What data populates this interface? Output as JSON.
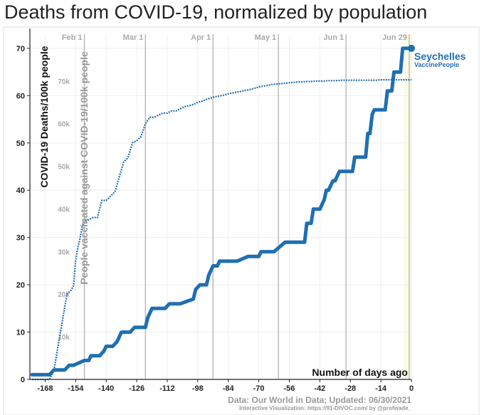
{
  "title": "Deaths from COVID-19, normalized by population",
  "chart_data": {
    "type": "line",
    "xlabel": "Number of days ago",
    "ylabel": "COVID-19 Deaths/100k people",
    "y2label": "People vaccinated against COVID-19/100k people",
    "xlim": [
      -175,
      0
    ],
    "ylim": [
      0,
      73
    ],
    "y2lim": [
      0,
      81000
    ],
    "x_ticks": [
      -168,
      -154,
      -140,
      -126,
      -112,
      -98,
      -84,
      -70,
      -56,
      -42,
      -28,
      -14,
      0
    ],
    "x_tick_labels": [
      "-168",
      "-154",
      "-140",
      "-126",
      "-112",
      "-98",
      "-84",
      "-70",
      "-56",
      "-42",
      "-28",
      "-14",
      "0"
    ],
    "y_ticks": [
      0,
      10,
      20,
      30,
      40,
      50,
      60,
      70
    ],
    "y_tick_labels": [
      "0",
      "10",
      "20",
      "30",
      "40",
      "50",
      "60",
      "70"
    ],
    "y2_ticks": [
      10000,
      20000,
      30000,
      40000,
      50000,
      60000,
      70000
    ],
    "y2_tick_labels": [
      "10k",
      "20k",
      "30k",
      "40k",
      "50k",
      "60k",
      "70k"
    ],
    "date_markers": [
      {
        "label": "Feb 1",
        "x": -150
      },
      {
        "label": "Mar 1",
        "x": -122
      },
      {
        "label": "Apr 1",
        "x": -91
      },
      {
        "label": "May 1",
        "x": -61
      },
      {
        "label": "Jun 1",
        "x": -30
      },
      {
        "label": "Jun 29",
        "x": -1
      }
    ],
    "grid": true,
    "series": [
      {
        "name": "Seychelles",
        "role": "deaths",
        "color": "#1f6fb2",
        "x": [
          -174,
          -166,
          -164,
          -159,
          -157,
          -155,
          -150,
          -148,
          -147,
          -145,
          -143,
          -141,
          -140,
          -138,
          -137,
          -135,
          -134,
          -133,
          -131,
          -130,
          -129,
          -127,
          -126,
          -125,
          -123,
          -122,
          -121,
          -120,
          -119,
          -113,
          -111,
          -110,
          -109,
          -108,
          -107,
          -106,
          -100,
          -99,
          -97,
          -96,
          -94,
          -93,
          -92,
          -91,
          -90,
          -89,
          -88,
          -87,
          -86,
          -85,
          -84,
          -83,
          -82,
          -81,
          -80,
          -75,
          -74,
          -70,
          -69,
          -64,
          -63,
          -58,
          -57,
          -56,
          -54,
          -52,
          -50,
          -49,
          -48,
          -46,
          -45,
          -44,
          -43,
          -42,
          -40,
          -39,
          -38,
          -37,
          -36,
          -35,
          -33,
          -32,
          -30,
          -29,
          -28,
          -27,
          -26,
          -25,
          -24,
          -23,
          -22,
          -21,
          -20,
          -19,
          -18,
          -17,
          -16,
          -15,
          -14,
          -13,
          -12,
          -11,
          -10,
          -9,
          -8,
          -7,
          -6,
          -5,
          -4,
          -3,
          -2,
          -1,
          0
        ],
        "y": [
          1.0,
          1.0,
          2.0,
          2.0,
          3.0,
          3.0,
          4.0,
          4.0,
          5.0,
          5.0,
          5.0,
          6.0,
          7.0,
          7.0,
          7.0,
          8.0,
          9.0,
          10.0,
          10.0,
          10.0,
          10.0,
          11.0,
          11.0,
          11.0,
          11.0,
          11.0,
          13.0,
          14.0,
          15.0,
          15.0,
          16.0,
          16.0,
          16.0,
          16.0,
          16.0,
          16.0,
          17.0,
          19.0,
          20.0,
          20.0,
          20.0,
          22.0,
          23.0,
          24.0,
          24.0,
          24.0,
          25.0,
          25.0,
          25.0,
          25.0,
          25.0,
          25.0,
          25.0,
          25.0,
          25.0,
          26.0,
          26.0,
          26.0,
          27.0,
          27.0,
          27.0,
          29.0,
          29.0,
          29.0,
          29.0,
          29.0,
          29.0,
          29.0,
          33.0,
          33.0,
          36.0,
          36.0,
          36.0,
          36.0,
          38.0,
          40.0,
          40.0,
          41.0,
          42.0,
          42.0,
          44.0,
          44.0,
          44.0,
          44.0,
          44.0,
          44.0,
          47.0,
          47.0,
          47.0,
          47.0,
          47.0,
          47.0,
          52.0,
          52.0,
          56.0,
          57.0,
          57.0,
          57.0,
          57.0,
          57.0,
          57.0,
          61.0,
          61.0,
          61.0,
          65.0,
          65.0,
          65.0,
          65.0,
          70.0,
          70.0,
          70.0,
          70.0,
          70.0
        ]
      },
      {
        "name": "VaccinePeople",
        "role": "vaccinated",
        "color": "#1f6fb2",
        "x": [
          -174,
          -166,
          -164,
          -162,
          -160,
          -158,
          -156,
          -155,
          -154,
          -153,
          -152,
          -151,
          -150,
          -148,
          -146,
          -144,
          -142,
          -140,
          -138,
          -136,
          -134,
          -132,
          -130,
          -128,
          -126,
          -124,
          -122,
          -120,
          -118,
          -116,
          -114,
          -112,
          -110,
          -108,
          -106,
          -104,
          -102,
          -100,
          -98,
          -96,
          -94,
          -92,
          -90,
          -88,
          -86,
          -84,
          -82,
          -80,
          -78,
          -76,
          -74,
          -72,
          -70,
          -68,
          -66,
          -64,
          -62,
          -60,
          -58,
          -56,
          -54,
          -52,
          -50,
          -48,
          -46,
          -44,
          -42,
          -40,
          -38,
          -36,
          -34,
          -32,
          -30,
          -28,
          -26,
          -24,
          -22,
          -20,
          -18,
          -16,
          -14,
          -12,
          -10,
          -8,
          -6,
          -4,
          -2,
          0
        ],
        "y": [
          0,
          0,
          2000,
          8000,
          14000,
          20000,
          21000,
          22000,
          28000,
          31000,
          33000,
          36000,
          37000,
          37500,
          38000,
          38000,
          42000,
          42000,
          43000,
          44000,
          47500,
          51000,
          52000,
          55500,
          56000,
          57000,
          60000,
          61500,
          61500,
          62000,
          62500,
          62500,
          63000,
          63000,
          63500,
          64000,
          64200,
          64500,
          65000,
          65300,
          65700,
          66000,
          66300,
          66500,
          66700,
          67000,
          67200,
          67400,
          67600,
          67800,
          68000,
          68300,
          68600,
          68800,
          69000,
          69200,
          69300,
          69400,
          69500,
          69600,
          69700,
          69800,
          69800,
          69900,
          69900,
          70000,
          70000,
          70000,
          70100,
          70100,
          70100,
          70200,
          70200,
          70200,
          70200,
          70200,
          70200,
          70200,
          70200,
          70200,
          70300,
          70300,
          70300,
          70300,
          70300,
          70300,
          70300,
          70300
        ]
      }
    ],
    "annotations": [
      {
        "text": "Seychelles"
      },
      {
        "text": "VaccinePeople"
      }
    ],
    "source_text": "Data: Our World in Data; Updated: 06/30/2021",
    "credit_text": "Interactive Visualization: https://91-DIVOC.com/ by @profwade_"
  }
}
